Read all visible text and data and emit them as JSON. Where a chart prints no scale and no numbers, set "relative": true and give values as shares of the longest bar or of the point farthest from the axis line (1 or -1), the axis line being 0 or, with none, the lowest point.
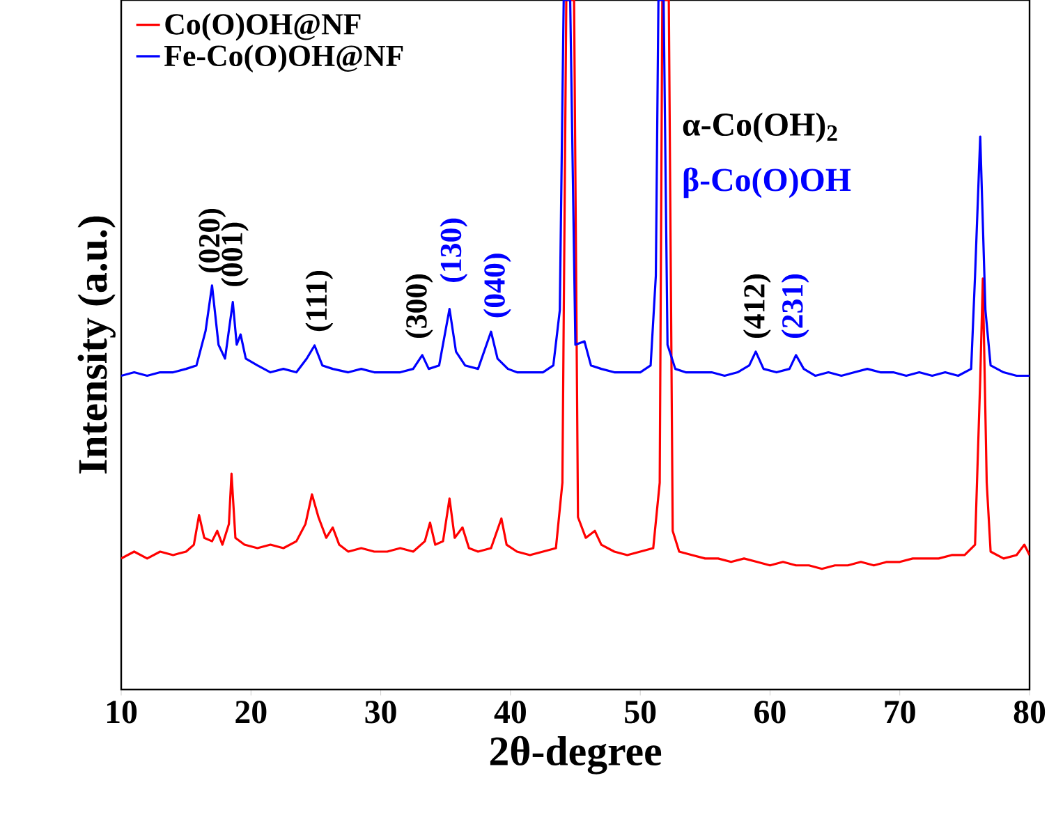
{
  "chart_data": {
    "type": "line",
    "relative": true,
    "xlabel": "2θ-degree",
    "ylabel": "Intensity (a.u.)",
    "xlim": [
      10,
      80
    ],
    "xticks": [
      10,
      20,
      30,
      40,
      50,
      60,
      70,
      80
    ],
    "tick_labels": "x",
    "grid": false,
    "legend": "top left",
    "marker": "none",
    "line_style": "solid",
    "series": [
      {
        "name": "Co(O)OH@NF",
        "color": "#ff0000",
        "x": [
          10,
          11,
          12,
          13,
          14,
          15,
          15.6,
          16,
          16.4,
          17,
          17.4,
          17.8,
          18.3,
          18.5,
          18.8,
          19.5,
          20.5,
          21.5,
          22.5,
          23.5,
          24.2,
          24.7,
          25.2,
          25.8,
          26.3,
          26.8,
          27.5,
          28.5,
          29.5,
          30.5,
          31.5,
          32.5,
          33.4,
          33.8,
          34.2,
          34.8,
          35.3,
          35.7,
          36.3,
          36.8,
          37.5,
          38.5,
          39.3,
          39.7,
          40.5,
          41.5,
          42.5,
          43.5,
          44.0,
          44.3,
          44.9,
          45.2,
          45.8,
          46.5,
          47,
          48,
          49,
          50,
          51,
          51.5,
          51.7,
          52.2,
          52.5,
          53,
          54,
          55,
          56,
          57,
          58,
          59,
          60,
          61,
          62,
          63,
          64,
          65,
          66,
          67,
          68,
          69,
          70,
          71,
          72,
          73,
          74,
          75,
          75.8,
          76.2,
          76.4,
          76.7,
          77,
          78,
          79,
          79.6,
          80
        ],
        "values": [
          0.19,
          0.2,
          0.19,
          0.2,
          0.195,
          0.2,
          0.21,
          0.253,
          0.22,
          0.215,
          0.23,
          0.21,
          0.24,
          0.313,
          0.22,
          0.21,
          0.205,
          0.21,
          0.205,
          0.215,
          0.24,
          0.283,
          0.25,
          0.22,
          0.235,
          0.21,
          0.2,
          0.205,
          0.2,
          0.2,
          0.205,
          0.2,
          0.215,
          0.242,
          0.21,
          0.215,
          0.277,
          0.22,
          0.235,
          0.205,
          0.2,
          0.205,
          0.248,
          0.21,
          0.2,
          0.195,
          0.2,
          0.205,
          0.3,
          1,
          1,
          0.25,
          0.22,
          0.23,
          0.21,
          0.2,
          0.195,
          0.2,
          0.205,
          0.3,
          1,
          1,
          0.23,
          0.2,
          0.195,
          0.19,
          0.19,
          0.185,
          0.19,
          0.185,
          0.18,
          0.185,
          0.18,
          0.18,
          0.175,
          0.18,
          0.18,
          0.185,
          0.18,
          0.185,
          0.185,
          0.19,
          0.19,
          0.19,
          0.195,
          0.195,
          0.21,
          0.45,
          0.596,
          0.3,
          0.2,
          0.19,
          0.195,
          0.21,
          0.195
        ]
      },
      {
        "name": "Fe-Co(O)OH@NF",
        "color": "#0000ff",
        "x": [
          10,
          11,
          12,
          13,
          14,
          15,
          15.8,
          16.5,
          17,
          17.5,
          18,
          18.6,
          18.9,
          19.2,
          19.6,
          20.5,
          21.5,
          22.5,
          23.5,
          24.3,
          24.9,
          25.5,
          26.3,
          27.5,
          28.5,
          29.5,
          30.5,
          31.5,
          32.5,
          33.2,
          33.7,
          34.5,
          35.3,
          35.8,
          36.5,
          37.5,
          38.5,
          39,
          39.8,
          40.5,
          41.5,
          42.5,
          43.3,
          43.8,
          44.1,
          44.6,
          45,
          45.7,
          46.2,
          47,
          48,
          49,
          50,
          50.8,
          51.2,
          51.4,
          51.8,
          52.1,
          52.7,
          53.5,
          54.5,
          55.5,
          56.5,
          57.5,
          58.4,
          58.9,
          59.5,
          60.5,
          61.5,
          62,
          62.6,
          63.5,
          64.5,
          65.5,
          66.5,
          67.5,
          68.5,
          69.5,
          70.5,
          71.5,
          72.5,
          73.5,
          74.5,
          75.5,
          75.8,
          76.2,
          76.6,
          77,
          78,
          79,
          80
        ],
        "values": [
          0.455,
          0.46,
          0.455,
          0.46,
          0.46,
          0.465,
          0.47,
          0.52,
          0.586,
          0.5,
          0.48,
          0.562,
          0.5,
          0.515,
          0.48,
          0.47,
          0.46,
          0.465,
          0.46,
          0.48,
          0.499,
          0.47,
          0.465,
          0.46,
          0.465,
          0.46,
          0.46,
          0.46,
          0.465,
          0.485,
          0.465,
          0.47,
          0.552,
          0.49,
          0.47,
          0.465,
          0.519,
          0.48,
          0.465,
          0.46,
          0.46,
          0.46,
          0.47,
          0.55,
          1,
          1,
          0.5,
          0.505,
          0.47,
          0.465,
          0.46,
          0.46,
          0.46,
          0.47,
          0.6,
          1,
          1,
          0.5,
          0.465,
          0.46,
          0.46,
          0.46,
          0.455,
          0.46,
          0.47,
          0.49,
          0.465,
          0.46,
          0.465,
          0.485,
          0.465,
          0.455,
          0.46,
          0.455,
          0.46,
          0.465,
          0.46,
          0.46,
          0.455,
          0.46,
          0.455,
          0.46,
          0.455,
          0.465,
          0.6,
          0.802,
          0.55,
          0.47,
          0.46,
          0.455,
          0.455
        ]
      }
    ],
    "annotations": [
      "(020)",
      "(001)",
      "(111)",
      "(300)",
      "(130)",
      "(040)",
      "(412)",
      "(231)",
      "α-Co(OH)$_{2}$",
      "β-Co(O)OH"
    ]
  }
}
